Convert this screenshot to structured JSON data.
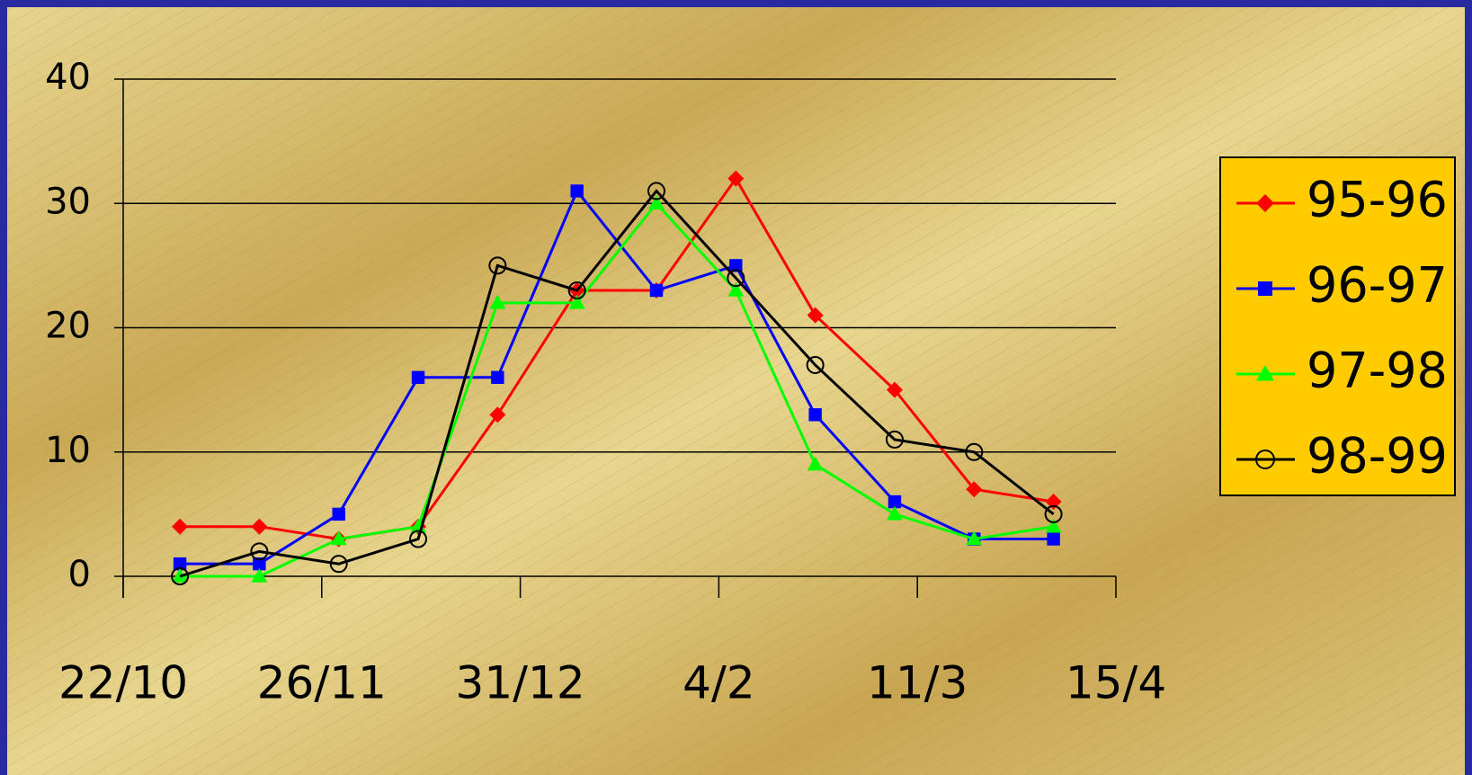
{
  "chart_data": {
    "type": "line",
    "x": [
      10,
      24,
      38,
      52,
      66,
      80,
      94,
      108,
      122,
      136,
      150,
      164
    ],
    "xlim": [
      0,
      175
    ],
    "xticks": [
      {
        "value": 0,
        "label": "22/10"
      },
      {
        "value": 35,
        "label": "26/11"
      },
      {
        "value": 70,
        "label": "31/12"
      },
      {
        "value": 105,
        "label": "4/2"
      },
      {
        "value": 140,
        "label": "11/3"
      },
      {
        "value": 175,
        "label": "15/4"
      }
    ],
    "ylim": [
      0,
      40
    ],
    "yticks": [
      0,
      10,
      20,
      30,
      40
    ],
    "grid": true,
    "legend": "right",
    "series": [
      {
        "name": "95-96",
        "color": "#ff0000",
        "marker": "diamond",
        "values": [
          4,
          4,
          3,
          4,
          13,
          23,
          23,
          32,
          21,
          15,
          7,
          6
        ]
      },
      {
        "name": "96-97",
        "color": "#0000ff",
        "marker": "square",
        "values": [
          1,
          1,
          5,
          16,
          16,
          31,
          23,
          25,
          13,
          6,
          3,
          3
        ]
      },
      {
        "name": "97-98",
        "color": "#00ff00",
        "marker": "triangle",
        "values": [
          0,
          0,
          3,
          4,
          22,
          22,
          30,
          23,
          9,
          5,
          3,
          4
        ]
      },
      {
        "name": "98-99",
        "color": "#000000",
        "marker": "circle",
        "values": [
          0,
          2,
          1,
          3,
          25,
          23,
          31,
          24,
          17,
          11,
          10,
          5
        ]
      }
    ]
  }
}
